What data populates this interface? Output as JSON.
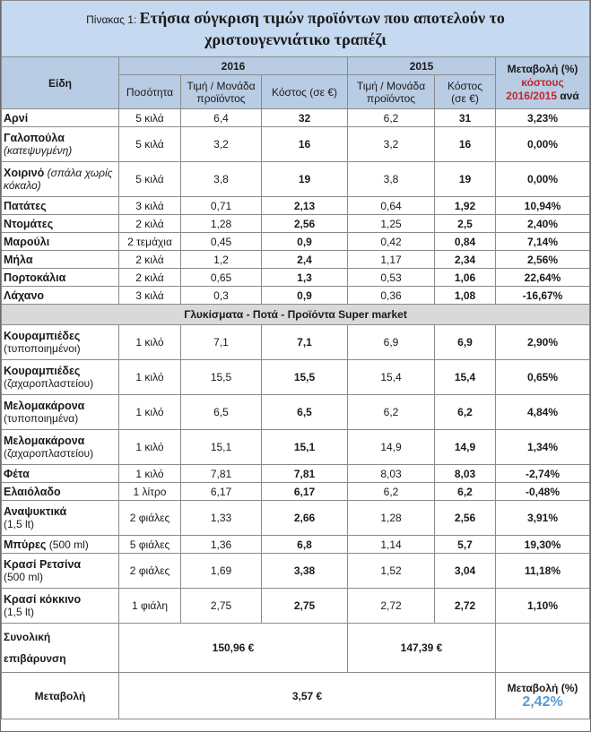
{
  "title": {
    "prefix": "Πίνακας 1:",
    "line1": "Ετήσια σύγκριση τιμών προϊόντων που αποτελούν το",
    "line2": "χριστουγεννιάτικο τραπέζι"
  },
  "header": {
    "items": "Είδη",
    "year_2016": "2016",
    "year_2015": "2015",
    "change_line1": "Μεταβολή (%)",
    "change_line2": "κόστους",
    "change_line3a": "2016/2015",
    "change_line3b": " ανά",
    "quantity": "Ποσότητα",
    "unit_price": "Τιμή / Μονάδα προϊόντος",
    "cost_2016": "Κόστος (σε €)",
    "unit_price_2015": "Τιμή / Μονάδα προϊόντος",
    "cost_2015_a": "Κόστος",
    "cost_2015_b": "(σε €)"
  },
  "rows_a": [
    {
      "name": "Αρνί",
      "note": "",
      "qty": "5 κιλά",
      "p16": "6,4",
      "c16": "32",
      "p15": "6,2",
      "c15": "31",
      "chg": "3,23%",
      "tone": "blue"
    },
    {
      "name": "Γαλοπούλα",
      "note": "(κατεψυγμένη)",
      "qty": "5 κιλά",
      "p16": "3,2",
      "c16": "16",
      "p15": "3,2",
      "c15": "16",
      "chg": "0,00%",
      "tone": "black"
    },
    {
      "name": "Χοιρινό",
      "note": "(σπάλα χωρίς κόκαλο)",
      "qty": "5 κιλά",
      "p16": "3,8",
      "c16": "19",
      "p15": "3,8",
      "c15": "19",
      "chg": "0,00%",
      "tone": "black"
    },
    {
      "name": "Πατάτες",
      "note": "",
      "qty": "3 κιλά",
      "p16": "0,71",
      "c16": "2,13",
      "p15": "0,64",
      "c15": "1,92",
      "chg": "10,94%",
      "tone": "blue"
    },
    {
      "name": "Ντομάτες",
      "note": "",
      "qty": "2 κιλά",
      "p16": "1,28",
      "c16": "2,56",
      "p15": "1,25",
      "c15": "2,5",
      "chg": "2,40%",
      "tone": "blue"
    },
    {
      "name": "Μαρούλι",
      "note": "",
      "qty": "2 τεμάχια",
      "p16": "0,45",
      "c16": "0,9",
      "p15": "0,42",
      "c15": "0,84",
      "chg": "7,14%",
      "tone": "blue"
    },
    {
      "name": "Μήλα",
      "note": "",
      "qty": "2 κιλά",
      "p16": "1,2",
      "c16": "2,4",
      "p15": "1,17",
      "c15": "2,34",
      "chg": "2,56%",
      "tone": "blue"
    },
    {
      "name": "Πορτοκάλια",
      "note": "",
      "qty": "2 κιλά",
      "p16": "0,65",
      "c16": "1,3",
      "p15": "0,53",
      "c15": "1,06",
      "chg": "22,64%",
      "tone": "blue"
    },
    {
      "name": "Λάχανο",
      "note": "",
      "qty": "3 κιλά",
      "p16": "0,3",
      "c16": "0,9",
      "p15": "0,36",
      "c15": "1,08",
      "chg": "-16,67%",
      "tone": "red"
    }
  ],
  "section_title": "Γλυκίσματα -  Ποτά - Προϊόντα Super market",
  "rows_b": [
    {
      "name": "Κουραμπιέδες",
      "note": "(τυποποιημένοι)",
      "qty": "1 κιλό",
      "p16": "7,1",
      "c16": "7,1",
      "p15": "6,9",
      "c15": "6,9",
      "chg": "2,90%",
      "tone": "blue"
    },
    {
      "name": "Κουραμπιέδες",
      "note": "(ζαχαροπλαστείου)",
      "qty": "1 κιλό",
      "p16": "15,5",
      "c16": "15,5",
      "p15": "15,4",
      "c15": "15,4",
      "chg": "0,65%",
      "tone": "blue"
    },
    {
      "name": "Μελομακάρονα",
      "note": "(τυποποιημένα)",
      "qty": "1 κιλό",
      "p16": "6,5",
      "c16": "6,5",
      "p15": "6,2",
      "c15": "6,2",
      "chg": "4,84%",
      "tone": "blue"
    },
    {
      "name": "Μελομακάρονα",
      "note": "(ζαχαροπλαστείου)",
      "qty": "1 κιλό",
      "p16": "15,1",
      "c16": "15,1",
      "p15": "14,9",
      "c15": "14,9",
      "chg": "1,34%",
      "tone": "blue"
    },
    {
      "name": "Φέτα",
      "note": "",
      "qty": "1 κιλό",
      "p16": "7,81",
      "c16": "7,81",
      "p15": "8,03",
      "c15": "8,03",
      "chg": "-2,74%",
      "tone": "red"
    },
    {
      "name": "Ελαιόλαδο",
      "note": "",
      "qty": "1 λίτρο",
      "p16": "6,17",
      "c16": "6,17",
      "p15": "6,2",
      "c15": "6,2",
      "chg": "-0,48%",
      "tone": "red"
    },
    {
      "name": "Αναψυκτικά",
      "note": "(1,5 lt)",
      "qty": "2 φιάλες",
      "p16": "1,33",
      "c16": "2,66",
      "p15": "1,28",
      "c15": "2,56",
      "chg": "3,91%",
      "tone": "blue"
    },
    {
      "name": "Μπύρες",
      "note_inline": " (500 ml)",
      "qty": "5 φιάλες",
      "p16": "1,36",
      "c16": "6,8",
      "p15": "1,14",
      "c15": "5,7",
      "chg": "19,30%",
      "tone": "blue"
    },
    {
      "name": "Κρασί Ρετσίνα",
      "note": "(500 ml)",
      "qty": "2 φιάλες",
      "p16": "1,69",
      "c16": "3,38",
      "p15": "1,52",
      "c15": "3,04",
      "chg": "11,18%",
      "tone": "blue"
    },
    {
      "name": "Κρασί κόκκινο",
      "note": "(1,5 lt)",
      "qty": "1 φιάλη",
      "p16": "2,75",
      "c16": "2,75",
      "p15": "2,72",
      "c15": "2,72",
      "chg": "1,10%",
      "tone": "blue"
    }
  ],
  "totals": {
    "label_line1": "Συνολική",
    "label_line2": "επιβάρυνση",
    "total_2016": "150,96 €",
    "total_2015": "147,39 €"
  },
  "balance": {
    "label": "Μεταβολή",
    "amount": "3,57 €",
    "pct_label": "Μεταβολή (%)",
    "pct_value": "2,42%"
  },
  "colors": {
    "header_bg": "#b8cce4",
    "section_bg": "#d9d9d9",
    "increase": "#2e74b5",
    "decrease": "#c0272d"
  }
}
